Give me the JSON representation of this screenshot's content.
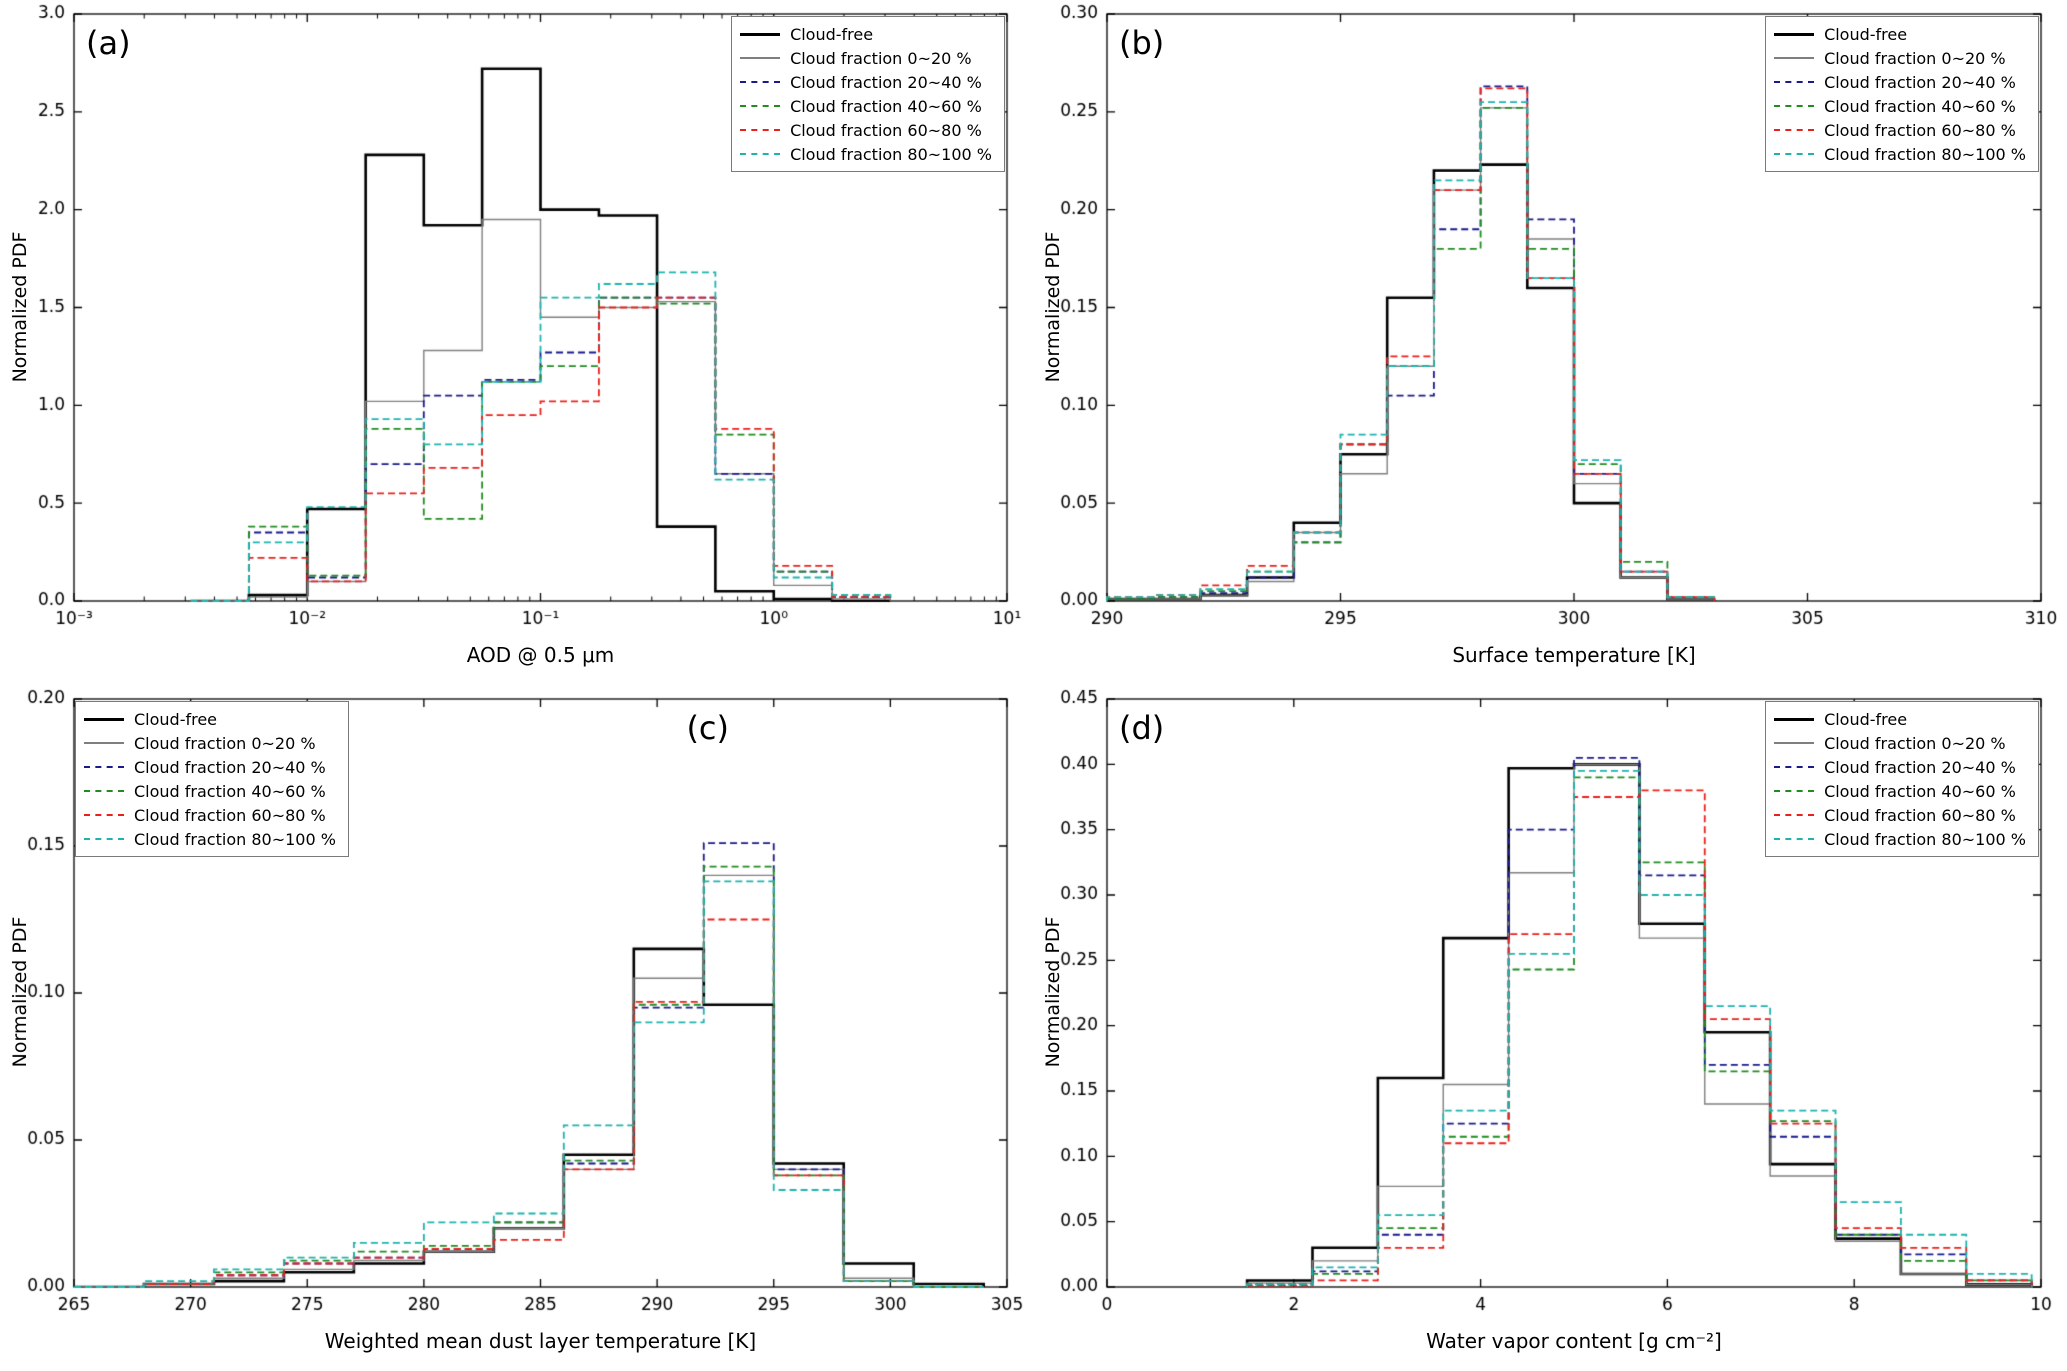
{
  "figure": {
    "background": "#ffffff",
    "ylabel_shared": "Normalized PDF"
  },
  "chart_data": {
    "type": "step-histogram",
    "legend_entries": [
      "Cloud-free",
      "Cloud fraction 0~20 %",
      "Cloud fraction 20~40 %",
      "Cloud fraction 40~60 %",
      "Cloud fraction 60~80 %",
      "Cloud fraction 80~100 %"
    ],
    "series_styles": [
      {
        "name": "Cloud-free",
        "color": "#000000",
        "dash": "solid",
        "width": 2.6
      },
      {
        "name": "Cloud fraction 0~20 %",
        "color": "#7f7f7f",
        "dash": "solid",
        "width": 1.4
      },
      {
        "name": "Cloud fraction 20~40 %",
        "color": "#1a1a8c",
        "dash": "dashed",
        "width": 1.8
      },
      {
        "name": "Cloud fraction 40~60 %",
        "color": "#228B22",
        "dash": "dashed",
        "width": 1.8
      },
      {
        "name": "Cloud fraction 60~80 %",
        "color": "#e8211d",
        "dash": "dashed",
        "width": 1.8
      },
      {
        "name": "Cloud fraction 80~100 %",
        "color": "#1fb3ad",
        "dash": "dashed",
        "width": 1.8
      }
    ],
    "panels": [
      {
        "id": "a",
        "panel_label": "(a)",
        "label_pos": "nw",
        "legend_pos": "ne",
        "xlabel": "AOD @ 0.5 μm",
        "ylabel": "Normalized PDF",
        "xscale": "log",
        "xlim": [
          0.001,
          10
        ],
        "ylim": [
          0,
          3.0
        ],
        "xticks": {
          "values": [
            0.001,
            0.01,
            0.1,
            1,
            10
          ],
          "labels": [
            "10⁻³",
            "10⁻²",
            "10⁻¹",
            "10⁰",
            "10¹"
          ]
        },
        "yticks": {
          "values": [
            0,
            0.5,
            1.0,
            1.5,
            2.0,
            2.5,
            3.0
          ],
          "labels": [
            "0.0",
            "0.5",
            "1.0",
            "1.5",
            "2.0",
            "2.5",
            "3.0"
          ]
        },
        "bin_edges": [
          0.00316,
          0.00562,
          0.01,
          0.0178,
          0.0316,
          0.0562,
          0.1,
          0.178,
          0.316,
          0.562,
          1.0,
          1.78,
          3.16
        ],
        "series": [
          {
            "name": "Cloud-free",
            "values": [
              0.0,
              0.03,
              0.47,
              2.28,
              1.92,
              2.72,
              2.0,
              1.97,
              0.38,
              0.05,
              0.01,
              0.0
            ]
          },
          {
            "name": "Cloud fraction 0~20 %",
            "values": [
              0.0,
              0.02,
              0.1,
              1.02,
              1.28,
              1.95,
              1.45,
              1.5,
              1.53,
              0.65,
              0.08,
              0.01
            ]
          },
          {
            "name": "Cloud fraction 20~40 %",
            "values": [
              0.0,
              0.35,
              0.12,
              0.7,
              1.05,
              1.13,
              1.27,
              1.55,
              1.55,
              0.65,
              0.15,
              0.02
            ]
          },
          {
            "name": "Cloud fraction 40~60 %",
            "values": [
              0.0,
              0.38,
              0.13,
              0.88,
              0.42,
              1.12,
              1.2,
              1.55,
              1.52,
              0.85,
              0.15,
              0.03
            ]
          },
          {
            "name": "Cloud fraction 60~80 %",
            "values": [
              0.0,
              0.22,
              0.1,
              0.55,
              0.68,
              0.95,
              1.02,
              1.5,
              1.55,
              0.88,
              0.18,
              0.02
            ]
          },
          {
            "name": "Cloud fraction 80~100 %",
            "values": [
              0.0,
              0.3,
              0.48,
              0.93,
              0.8,
              1.12,
              1.55,
              1.62,
              1.68,
              0.62,
              0.12,
              0.03
            ]
          }
        ]
      },
      {
        "id": "b",
        "panel_label": "(b)",
        "label_pos": "nw",
        "legend_pos": "ne",
        "xlabel": "Surface temperature [K]",
        "ylabel": "Normalized PDF",
        "xscale": "linear",
        "xlim": [
          290,
          310
        ],
        "ylim": [
          0,
          0.3
        ],
        "xticks": {
          "values": [
            290,
            295,
            300,
            305,
            310
          ],
          "labels": [
            "290",
            "295",
            "300",
            "305",
            "310"
          ]
        },
        "yticks": {
          "values": [
            0,
            0.05,
            0.1,
            0.15,
            0.2,
            0.25,
            0.3
          ],
          "labels": [
            "0.00",
            "0.05",
            "0.10",
            "0.15",
            "0.20",
            "0.25",
            "0.30"
          ]
        },
        "bin_edges": [
          290,
          291,
          292,
          293,
          294,
          295,
          296,
          297,
          298,
          299,
          300,
          301,
          302,
          303
        ],
        "series": [
          {
            "name": "Cloud-free",
            "values": [
              0.001,
              0.001,
              0.003,
              0.012,
              0.04,
              0.075,
              0.155,
              0.22,
              0.223,
              0.16,
              0.05,
              0.012,
              0.001
            ]
          },
          {
            "name": "Cloud fraction 0~20 %",
            "values": [
              0.001,
              0.001,
              0.003,
              0.01,
              0.035,
              0.065,
              0.12,
              0.21,
              0.252,
              0.185,
              0.06,
              0.012,
              0.001
            ]
          },
          {
            "name": "Cloud fraction 20~40 %",
            "values": [
              0.001,
              0.002,
              0.004,
              0.012,
              0.03,
              0.08,
              0.105,
              0.19,
              0.263,
              0.195,
              0.065,
              0.015,
              0.002
            ]
          },
          {
            "name": "Cloud fraction 40~60 %",
            "values": [
              0.001,
              0.002,
              0.005,
              0.015,
              0.03,
              0.08,
              0.12,
              0.18,
              0.252,
              0.18,
              0.07,
              0.02,
              0.002
            ]
          },
          {
            "name": "Cloud fraction 60~80 %",
            "values": [
              0.002,
              0.003,
              0.008,
              0.018,
              0.035,
              0.08,
              0.125,
              0.21,
              0.262,
              0.165,
              0.065,
              0.015,
              0.002
            ]
          },
          {
            "name": "Cloud fraction 80~100 %",
            "values": [
              0.002,
              0.003,
              0.006,
              0.015,
              0.035,
              0.085,
              0.12,
              0.215,
              0.255,
              0.165,
              0.072,
              0.015,
              0.002
            ]
          }
        ]
      },
      {
        "id": "c",
        "panel_label": "(c)",
        "label_pos": "ne",
        "legend_pos": "nw",
        "xlabel": "Weighted mean dust layer temperature [K]",
        "ylabel": "Normalized PDF",
        "xscale": "linear",
        "xlim": [
          265,
          305
        ],
        "ylim": [
          0,
          0.2
        ],
        "xticks": {
          "values": [
            265,
            270,
            275,
            280,
            285,
            290,
            295,
            300,
            305
          ],
          "labels": [
            "265",
            "270",
            "275",
            "280",
            "285",
            "290",
            "295",
            "300",
            "305"
          ]
        },
        "yticks": {
          "values": [
            0,
            0.05,
            0.1,
            0.15,
            0.2
          ],
          "labels": [
            "0.00",
            "0.05",
            "0.10",
            "0.15",
            "0.20"
          ]
        },
        "bin_edges": [
          265,
          268,
          271,
          274,
          277,
          280,
          283,
          286,
          289,
          292,
          295,
          298,
          301,
          304
        ],
        "series": [
          {
            "name": "Cloud-free",
            "values": [
              0.0,
              0.001,
              0.002,
              0.005,
              0.008,
              0.012,
              0.02,
              0.045,
              0.115,
              0.096,
              0.042,
              0.008,
              0.001
            ]
          },
          {
            "name": "Cloud fraction 0~20 %",
            "values": [
              0.0,
              0.001,
              0.003,
              0.006,
              0.009,
              0.012,
              0.02,
              0.04,
              0.105,
              0.14,
              0.04,
              0.003,
              0.0
            ]
          },
          {
            "name": "Cloud fraction 20~40 %",
            "values": [
              0.0,
              0.001,
              0.004,
              0.008,
              0.01,
              0.013,
              0.022,
              0.042,
              0.095,
              0.151,
              0.04,
              0.002,
              0.0
            ]
          },
          {
            "name": "Cloud fraction 40~60 %",
            "values": [
              0.0,
              0.001,
              0.005,
              0.009,
              0.012,
              0.014,
              0.022,
              0.043,
              0.096,
              0.143,
              0.038,
              0.002,
              0.0
            ]
          },
          {
            "name": "Cloud fraction 60~80 %",
            "values": [
              0.0,
              0.001,
              0.004,
              0.008,
              0.01,
              0.013,
              0.016,
              0.04,
              0.097,
              0.125,
              0.038,
              0.002,
              0.0
            ]
          },
          {
            "name": "Cloud fraction 80~100 %",
            "values": [
              0.0,
              0.002,
              0.006,
              0.01,
              0.015,
              0.022,
              0.025,
              0.055,
              0.09,
              0.138,
              0.033,
              0.002,
              0.0
            ]
          }
        ]
      },
      {
        "id": "d",
        "panel_label": "(d)",
        "label_pos": "nw",
        "legend_pos": "ne",
        "xlabel": "Water vapor content [g cm⁻²]",
        "ylabel": "Normalized PDF",
        "xscale": "linear",
        "xlim": [
          0,
          10
        ],
        "ylim": [
          0,
          0.45
        ],
        "xticks": {
          "values": [
            0,
            2,
            4,
            6,
            8,
            10
          ],
          "labels": [
            "0",
            "2",
            "4",
            "6",
            "8",
            "10"
          ]
        },
        "yticks": {
          "values": [
            0,
            0.05,
            0.1,
            0.15,
            0.2,
            0.25,
            0.3,
            0.35,
            0.4,
            0.45
          ],
          "labels": [
            "0.00",
            "0.05",
            "0.10",
            "0.15",
            "0.20",
            "0.25",
            "0.30",
            "0.35",
            "0.40",
            "0.45"
          ]
        },
        "bin_edges": [
          1.5,
          2.2,
          2.9,
          3.6,
          4.3,
          5.0,
          5.7,
          6.4,
          7.1,
          7.8,
          8.5,
          9.2,
          9.9
        ],
        "series": [
          {
            "name": "Cloud-free",
            "values": [
              0.005,
              0.03,
              0.16,
              0.267,
              0.397,
              0.4,
              0.278,
              0.195,
              0.094,
              0.037,
              0.01,
              0.002
            ]
          },
          {
            "name": "Cloud fraction 0~20 %",
            "values": [
              0.003,
              0.02,
              0.077,
              0.155,
              0.317,
              0.4,
              0.267,
              0.14,
              0.085,
              0.035,
              0.01,
              0.002
            ]
          },
          {
            "name": "Cloud fraction 20~40 %",
            "values": [
              0.002,
              0.012,
              0.04,
              0.125,
              0.35,
              0.405,
              0.315,
              0.17,
              0.115,
              0.04,
              0.025,
              0.005
            ]
          },
          {
            "name": "Cloud fraction 40~60 %",
            "values": [
              0.002,
              0.01,
              0.045,
              0.115,
              0.243,
              0.39,
              0.325,
              0.165,
              0.127,
              0.04,
              0.02,
              0.005
            ]
          },
          {
            "name": "Cloud fraction 60~80 %",
            "values": [
              0.001,
              0.005,
              0.03,
              0.11,
              0.27,
              0.375,
              0.38,
              0.205,
              0.125,
              0.045,
              0.03,
              0.005
            ]
          },
          {
            "name": "Cloud fraction 80~100 %",
            "values": [
              0.002,
              0.015,
              0.055,
              0.135,
              0.255,
              0.395,
              0.3,
              0.215,
              0.135,
              0.065,
              0.04,
              0.01
            ]
          }
        ]
      }
    ]
  }
}
